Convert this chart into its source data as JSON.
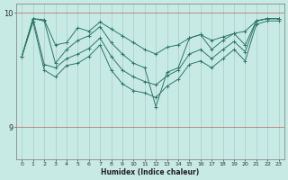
{
  "xlabel": "Humidex (Indice chaleur)",
  "bg_color": "#c8eae4",
  "line_color": "#2d7868",
  "grid_color": "#a8ccc8",
  "ylim": [
    8.72,
    10.08
  ],
  "xlim": [
    -0.5,
    23.5
  ],
  "yticks": [
    9,
    10
  ],
  "xticks": [
    0,
    1,
    2,
    3,
    4,
    5,
    6,
    7,
    8,
    9,
    10,
    11,
    12,
    13,
    14,
    15,
    16,
    17,
    18,
    19,
    20,
    21,
    22,
    23
  ],
  "series": [
    [
      9.62,
      9.95,
      9.94,
      9.72,
      9.74,
      9.87,
      9.84,
      9.92,
      9.86,
      9.8,
      9.74,
      9.68,
      9.64,
      9.7,
      9.72,
      9.78,
      9.81,
      9.76,
      9.79,
      9.82,
      9.84,
      9.93,
      9.95,
      9.95
    ],
    [
      9.62,
      9.95,
      9.93,
      9.56,
      9.68,
      9.76,
      9.8,
      9.88,
      9.74,
      9.64,
      9.56,
      9.52,
      9.18,
      9.48,
      9.52,
      9.78,
      9.81,
      9.68,
      9.76,
      9.82,
      9.72,
      9.93,
      9.95,
      9.95
    ],
    [
      9.62,
      9.95,
      9.55,
      9.52,
      9.6,
      9.64,
      9.69,
      9.78,
      9.62,
      9.5,
      9.44,
      9.4,
      9.37,
      9.45,
      9.5,
      9.64,
      9.68,
      9.6,
      9.68,
      9.75,
      9.66,
      9.93,
      9.95,
      9.95
    ],
    [
      9.62,
      9.92,
      9.5,
      9.44,
      9.54,
      9.56,
      9.62,
      9.72,
      9.5,
      9.38,
      9.32,
      9.3,
      9.26,
      9.36,
      9.42,
      9.55,
      9.58,
      9.52,
      9.6,
      9.68,
      9.58,
      9.9,
      9.93,
      9.93
    ]
  ]
}
